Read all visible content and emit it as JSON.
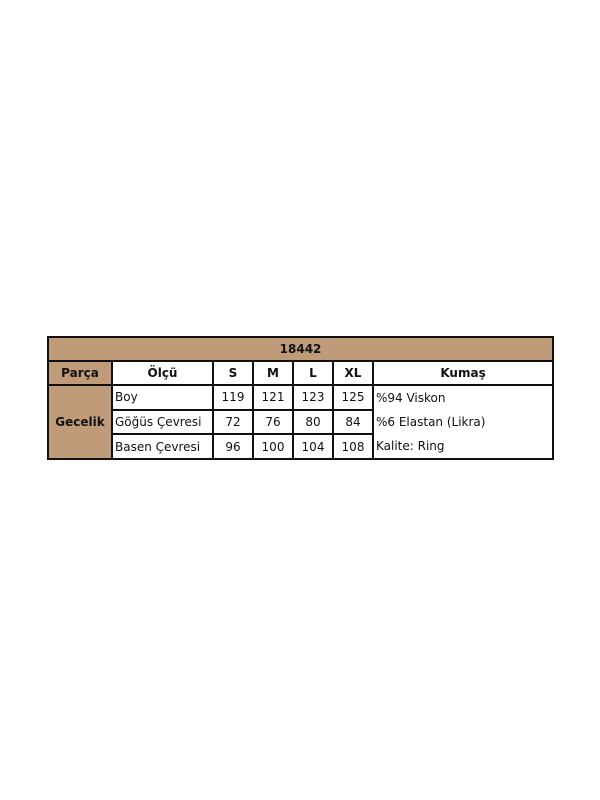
{
  "colors": {
    "header_bg": "#bf9b7a",
    "border": "#111111"
  },
  "title": "18442",
  "headers": [
    "Parça",
    "Ölçü",
    "S",
    "M",
    "L",
    "XL",
    "Kumaş"
  ],
  "part": "Gecelik",
  "rows": [
    {
      "label": "Boy",
      "values": [
        "119",
        "121",
        "123",
        "125"
      ]
    },
    {
      "label": "Göğüs Çevresi",
      "values": [
        "72",
        "76",
        "80",
        "84"
      ]
    },
    {
      "label": "Basen Çevresi",
      "values": [
        "96",
        "100",
        "104",
        "108"
      ]
    }
  ],
  "fabric": [
    "%94 Viskon",
    "%6 Elastan (Likra)",
    "Kalite: Ring"
  ]
}
